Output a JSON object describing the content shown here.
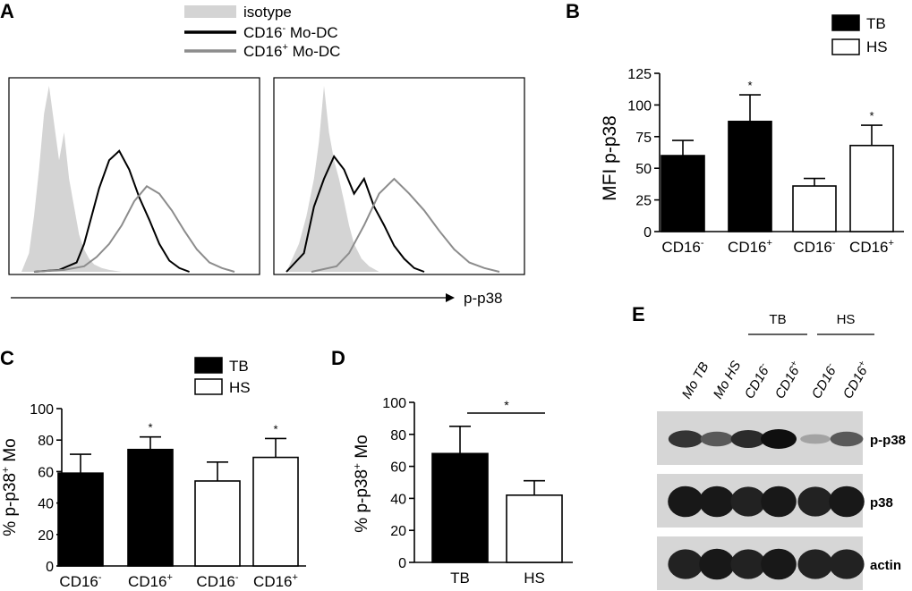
{
  "panel_labels": {
    "a": "A",
    "b": "B",
    "c": "C",
    "d": "D",
    "e": "E"
  },
  "colors": {
    "isotype": "#d4d4d4",
    "cd16_neg": "#000000",
    "cd16_pos": "#8c8c8c",
    "tb": "#000000",
    "hs": "#ffffff"
  },
  "chart_data": [
    {
      "id": "A",
      "type": "area",
      "legend": [
        {
          "label": "isotype",
          "color": "#d4d4d4"
        },
        {
          "label": "CD16",
          "sup": "-",
          "suffix": " Mo-DC",
          "color": "#000000"
        },
        {
          "label": "CD16",
          "sup": "+",
          "suffix": " Mo-DC",
          "color": "#8c8c8c"
        }
      ],
      "xlabel": "p-p38",
      "series": [
        {
          "name": "isotype",
          "panel": 0,
          "x": [
            0.05,
            0.08,
            0.1,
            0.12,
            0.14,
            0.16,
            0.18,
            0.2,
            0.22,
            0.24,
            0.26,
            0.28,
            0.3,
            0.32,
            0.34,
            0.37,
            0.4,
            0.45
          ],
          "y": [
            0,
            0.1,
            0.3,
            0.55,
            0.85,
            1.0,
            0.8,
            0.6,
            0.75,
            0.5,
            0.35,
            0.2,
            0.12,
            0.07,
            0.04,
            0.02,
            0.01,
            0
          ]
        },
        {
          "name": "CD16- Mo-DC",
          "panel": 0,
          "x": [
            0.1,
            0.2,
            0.27,
            0.3,
            0.33,
            0.36,
            0.4,
            0.44,
            0.48,
            0.52,
            0.56,
            0.6,
            0.64,
            0.68,
            0.72
          ],
          "y": [
            0,
            0.01,
            0.05,
            0.15,
            0.3,
            0.45,
            0.6,
            0.65,
            0.55,
            0.4,
            0.28,
            0.15,
            0.06,
            0.02,
            0
          ]
        },
        {
          "name": "CD16+ Mo-DC",
          "panel": 0,
          "x": [
            0.1,
            0.22,
            0.3,
            0.35,
            0.4,
            0.45,
            0.5,
            0.55,
            0.6,
            0.65,
            0.7,
            0.75,
            0.8,
            0.85,
            0.9
          ],
          "y": [
            0,
            0.01,
            0.03,
            0.08,
            0.15,
            0.25,
            0.38,
            0.46,
            0.42,
            0.33,
            0.22,
            0.12,
            0.05,
            0.02,
            0
          ]
        },
        {
          "name": "isotype",
          "panel": 1,
          "x": [
            0.05,
            0.1,
            0.13,
            0.16,
            0.18,
            0.2,
            0.22,
            0.24,
            0.26,
            0.28,
            0.3,
            0.32,
            0.35,
            0.38,
            0.42
          ],
          "y": [
            0,
            0.15,
            0.3,
            0.5,
            0.7,
            1.0,
            0.75,
            0.6,
            0.5,
            0.38,
            0.25,
            0.15,
            0.07,
            0.03,
            0
          ]
        },
        {
          "name": "CD16- Mo-DC",
          "panel": 1,
          "x": [
            0.05,
            0.12,
            0.16,
            0.2,
            0.24,
            0.28,
            0.32,
            0.36,
            0.4,
            0.44,
            0.48,
            0.52,
            0.56,
            0.6
          ],
          "y": [
            0,
            0.1,
            0.35,
            0.5,
            0.62,
            0.55,
            0.42,
            0.5,
            0.35,
            0.25,
            0.14,
            0.07,
            0.02,
            0
          ]
        },
        {
          "name": "CD16+ Mo-DC",
          "panel": 1,
          "x": [
            0.15,
            0.25,
            0.3,
            0.36,
            0.42,
            0.48,
            0.54,
            0.6,
            0.66,
            0.72,
            0.78,
            0.84,
            0.9
          ],
          "y": [
            0,
            0.03,
            0.1,
            0.25,
            0.42,
            0.5,
            0.42,
            0.33,
            0.22,
            0.12,
            0.05,
            0.02,
            0
          ]
        }
      ]
    },
    {
      "id": "B",
      "type": "bar",
      "ylabel": "MFI p-p38",
      "ylim": [
        0,
        125
      ],
      "yticks": [
        0,
        25,
        50,
        75,
        100,
        125
      ],
      "legend": [
        {
          "label": "TB",
          "fill": "#000000"
        },
        {
          "label": "HS",
          "fill": "#ffffff"
        }
      ],
      "categories": [
        {
          "label": "CD16",
          "sup": "-"
        },
        {
          "label": "CD16",
          "sup": "+"
        },
        {
          "label": "CD16",
          "sup": "-"
        },
        {
          "label": "CD16",
          "sup": "+"
        }
      ],
      "bars": [
        {
          "value": 60,
          "err": 12,
          "group": "TB",
          "sig": ""
        },
        {
          "value": 87,
          "err": 21,
          "group": "TB",
          "sig": "*"
        },
        {
          "value": 36,
          "err": 6,
          "group": "HS",
          "sig": ""
        },
        {
          "value": 68,
          "err": 16,
          "group": "HS",
          "sig": "*"
        }
      ]
    },
    {
      "id": "C",
      "type": "bar",
      "ylabel": "% p-p38",
      "ylabel_sup": "+",
      "ylabel_suffix": " Mo",
      "ylim": [
        0,
        100
      ],
      "yticks": [
        0,
        20,
        40,
        60,
        80,
        100
      ],
      "legend": [
        {
          "label": "TB",
          "fill": "#000000"
        },
        {
          "label": "HS",
          "fill": "#ffffff"
        }
      ],
      "categories": [
        {
          "label": "CD16",
          "sup": "-"
        },
        {
          "label": "CD16",
          "sup": "+"
        },
        {
          "label": "CD16",
          "sup": "-"
        },
        {
          "label": "CD16",
          "sup": "+"
        }
      ],
      "bars": [
        {
          "value": 59,
          "err": 12,
          "group": "TB",
          "sig": ""
        },
        {
          "value": 74,
          "err": 8,
          "group": "TB",
          "sig": "*"
        },
        {
          "value": 54,
          "err": 12,
          "group": "HS",
          "sig": ""
        },
        {
          "value": 69,
          "err": 12,
          "group": "HS",
          "sig": "*"
        }
      ]
    },
    {
      "id": "D",
      "type": "bar",
      "ylabel": "% p-p38",
      "ylabel_sup": "+",
      "ylabel_suffix": " Mo",
      "ylim": [
        0,
        100
      ],
      "yticks": [
        0,
        20,
        40,
        60,
        80,
        100
      ],
      "categories": [
        {
          "label": "TB",
          "sup": ""
        },
        {
          "label": "HS",
          "sup": ""
        }
      ],
      "bars": [
        {
          "value": 68,
          "err": 17,
          "group": "TB",
          "sig": ""
        },
        {
          "value": 42,
          "err": 9,
          "group": "HS",
          "sig": ""
        }
      ],
      "significance": "*"
    }
  ],
  "blot": {
    "groups": [
      {
        "label": "TB"
      },
      {
        "label": "HS"
      }
    ],
    "lanes": [
      {
        "label": "Mo TB",
        "sup": ""
      },
      {
        "label": "Mo HS",
        "sup": ""
      },
      {
        "label": "CD16",
        "sup": "-"
      },
      {
        "label": "CD16",
        "sup": "+"
      },
      {
        "label": "CD16",
        "sup": "-"
      },
      {
        "label": "CD16",
        "sup": "+"
      }
    ],
    "rows": [
      {
        "label": "p-p38",
        "intensity": [
          0.8,
          0.6,
          0.85,
          1.0,
          0.2,
          0.6
        ]
      },
      {
        "label": "p38",
        "intensity": [
          0.95,
          0.95,
          0.9,
          0.95,
          0.9,
          0.95
        ]
      },
      {
        "label": "actin",
        "intensity": [
          0.9,
          0.95,
          0.9,
          0.95,
          0.9,
          0.9
        ]
      }
    ]
  }
}
